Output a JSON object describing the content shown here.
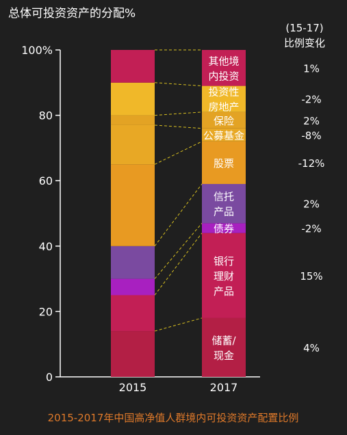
{
  "chart_data": {
    "type": "bar",
    "stacked": true,
    "title": "总体可投资资产的分配%",
    "caption": "2015-2017年中国高净值人群境内可投资资产配置比例",
    "categories": [
      "2015",
      "2017"
    ],
    "ylim": [
      0,
      100
    ],
    "yticks": [
      "0",
      "20",
      "40",
      "60",
      "80",
      "100%"
    ],
    "change_header": [
      "(15-17)",
      "比例变化"
    ],
    "series": [
      {
        "name": "储蓄/现金",
        "label_lines": [
          "储蓄/",
          "现金"
        ],
        "values": [
          14,
          18
        ],
        "change": "4%",
        "color": "#b31f45"
      },
      {
        "name": "银行理财产品",
        "label_lines": [
          "银行",
          "理财",
          "产品"
        ],
        "values": [
          11,
          26
        ],
        "change": "15%",
        "color": "#c21f55"
      },
      {
        "name": "债券",
        "label_lines": [
          "债券"
        ],
        "values": [
          5,
          3
        ],
        "change": "-2%",
        "color": "#a820c0"
      },
      {
        "name": "信托产品",
        "label_lines": [
          "信托",
          "产品"
        ],
        "values": [
          10,
          12
        ],
        "change": "2%",
        "color": "#7a4aa0"
      },
      {
        "name": "股票",
        "label_lines": [
          "股票"
        ],
        "values": [
          25,
          13
        ],
        "change": "-12%",
        "color": "#e89a22"
      },
      {
        "name": "公募基金",
        "label_lines": [
          "公募基金"
        ],
        "values": [
          12,
          4
        ],
        "change": "-8%",
        "color": "#e8a825"
      },
      {
        "name": "保险",
        "label_lines": [
          "保险"
        ],
        "values": [
          3,
          5
        ],
        "change": "2%",
        "color": "#e3a324"
      },
      {
        "name": "投资性房地产",
        "label_lines": [
          "投资性",
          "房地产"
        ],
        "values": [
          10,
          8
        ],
        "change": "-2%",
        "color": "#f0b829"
      },
      {
        "name": "其他境内投资",
        "label_lines": [
          "其他境",
          "内投资"
        ],
        "values": [
          10,
          11
        ],
        "change": "1%",
        "color": "#c21f55"
      }
    ]
  }
}
